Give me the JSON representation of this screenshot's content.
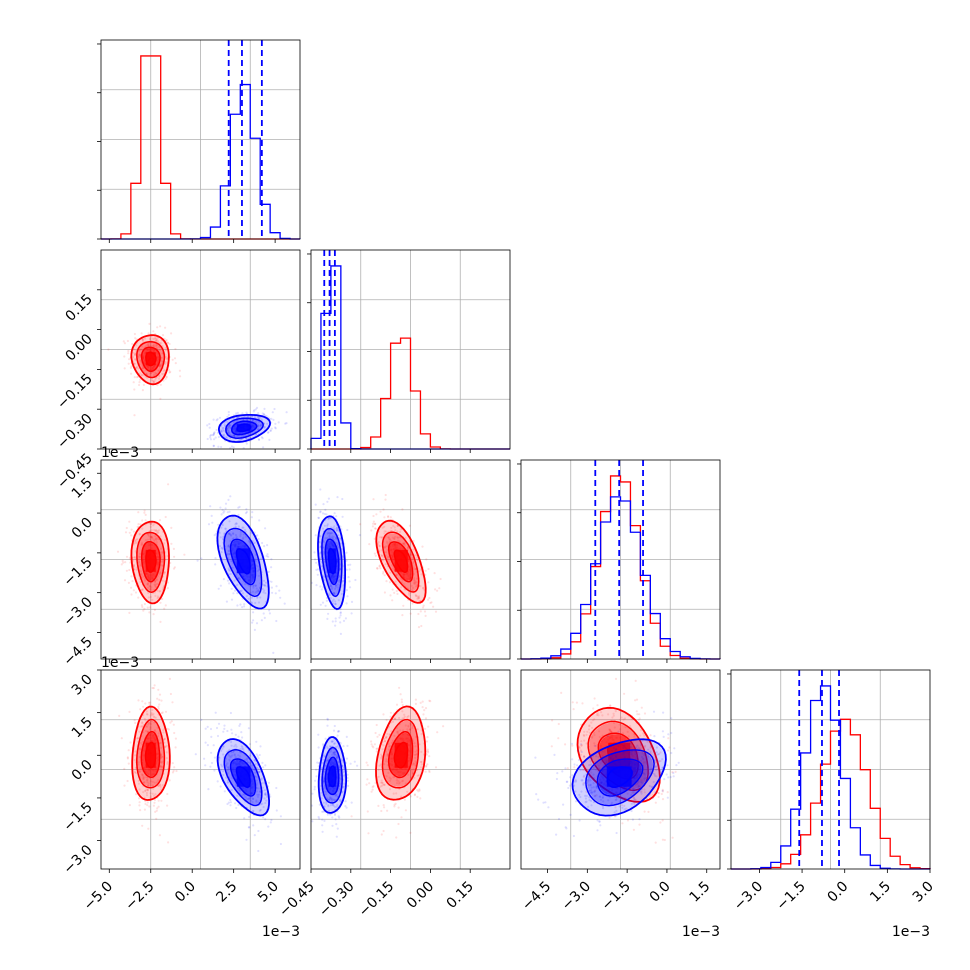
{
  "chart_data": {
    "type": "corner",
    "grid": true,
    "series": [
      {
        "color": "#ff0000"
      },
      {
        "color": "#0000ff"
      }
    ],
    "offset_label": "1e−3",
    "params": [
      {
        "scale": "1e-3",
        "range": [
          -5.5,
          6.5
        ],
        "ticks": [
          "−5.0",
          "−2.5",
          "0.0",
          "2.5",
          "5.0"
        ],
        "tick_values": [
          -5.0,
          -2.5,
          0.0,
          2.5,
          5.0
        ],
        "quantiles_blue": [
          2.2,
          3.0,
          4.2
        ]
      },
      {
        "scale": "1",
        "range": [
          -0.45,
          0.3
        ],
        "ticks": [
          "−0.45",
          "−0.30",
          "−0.15",
          "0.00",
          "0.15"
        ],
        "tick_values": [
          -0.45,
          -0.3,
          -0.15,
          0.0,
          0.15
        ],
        "quantiles_blue": [
          -0.4,
          -0.38,
          -0.36
        ]
      },
      {
        "scale": "1e-3",
        "range": [
          -5.5,
          2.0
        ],
        "ticks": [
          "−4.5",
          "−3.0",
          "−1.5",
          "0.0",
          "1.5"
        ],
        "tick_values": [
          -4.5,
          -3.0,
          -1.5,
          0.0,
          1.5
        ],
        "quantiles_blue": [
          -2.7,
          -1.8,
          -0.9
        ]
      },
      {
        "scale": "1e-3",
        "range": [
          -4.0,
          3.0
        ],
        "ticks": [
          "−3.0",
          "−1.5",
          "0.0",
          "1.5",
          "3.0"
        ],
        "tick_values": [
          -3.0,
          -1.5,
          0.0,
          1.5,
          3.0
        ],
        "quantiles_blue": [
          -1.6,
          -0.8,
          -0.2
        ]
      }
    ],
    "marginals": [
      {
        "red": {
          "mean": -2.5,
          "sd": 0.55
        },
        "blue": {
          "mean": 3.1,
          "sd": 0.75
        }
      },
      {
        "red": {
          "mean": -0.11,
          "sd": 0.045
        },
        "blue": {
          "mean": -0.37,
          "sd": 0.025
        }
      },
      {
        "red": {
          "mean": -1.8,
          "sd": 0.75
        },
        "blue": {
          "mean": -1.8,
          "sd": 0.85
        }
      },
      {
        "red": {
          "mean": 0.0,
          "sd": 0.8
        },
        "blue": {
          "mean": -0.75,
          "sd": 0.65
        }
      }
    ],
    "pair_correlations": {
      "1-0": {
        "red": -0.05,
        "blue": 0.25
      },
      "2-0": {
        "red": -0.05,
        "blue": -0.55
      },
      "2-1": {
        "red": -0.6,
        "blue": -0.3
      },
      "3-0": {
        "red": 0.05,
        "blue": -0.55
      },
      "3-1": {
        "red": 0.25,
        "blue": 0.05
      },
      "3-2": {
        "red": -0.35,
        "blue": 0.35
      }
    }
  }
}
